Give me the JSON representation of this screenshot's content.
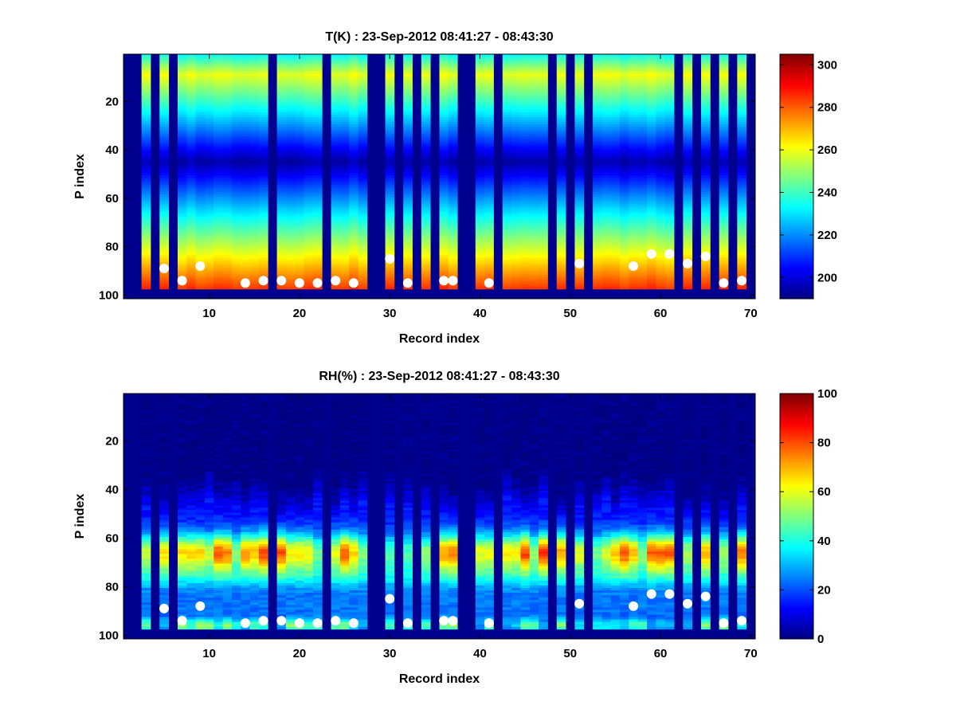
{
  "chart_data": [
    {
      "type": "heatmap",
      "title": "T(K) : 23-Sep-2012 08:41:27 - 08:43:30",
      "xlabel": "Record index",
      "ylabel": "P index",
      "xlim": [
        0.5,
        70.5
      ],
      "ylim": [
        0.5,
        101.5
      ],
      "y_reversed": true,
      "x_ticks": [
        10,
        20,
        30,
        40,
        50,
        60,
        70
      ],
      "y_ticks": [
        20,
        40,
        60,
        80,
        100
      ],
      "colormap": "jet",
      "colorbar": {
        "clim": [
          190,
          305
        ],
        "ticks": [
          200,
          220,
          240,
          260,
          280,
          300
        ]
      },
      "missing_records": [
        1,
        2,
        4,
        6,
        17,
        23,
        28,
        29,
        31,
        33,
        35,
        38,
        39,
        42,
        48,
        50,
        52,
        62,
        64,
        66,
        68,
        70
      ],
      "surface_markers": {
        "x": [
          5,
          7,
          9,
          14,
          16,
          18,
          20,
          22,
          24,
          26,
          30,
          32,
          36,
          37,
          41,
          51,
          57,
          59,
          61,
          63,
          65,
          67,
          69
        ],
        "y": [
          89,
          94,
          88,
          95,
          94,
          94,
          95,
          95,
          94,
          95,
          85,
          95,
          94,
          94,
          95,
          87,
          88,
          83,
          83,
          87,
          84,
          95,
          94
        ]
      }
    },
    {
      "type": "heatmap",
      "title": "RH(%) : 23-Sep-2012 08:41:27 - 08:43:30",
      "xlabel": "Record index",
      "ylabel": "P index",
      "xlim": [
        0.5,
        70.5
      ],
      "ylim": [
        0.5,
        101.5
      ],
      "y_reversed": true,
      "x_ticks": [
        10,
        20,
        30,
        40,
        50,
        60,
        70
      ],
      "y_ticks": [
        20,
        40,
        60,
        80,
        100
      ],
      "colormap": "jet",
      "colorbar": {
        "clim": [
          0,
          100
        ],
        "ticks": [
          0,
          20,
          40,
          60,
          80,
          100
        ]
      },
      "missing_records": [
        1,
        2,
        4,
        6,
        17,
        23,
        28,
        29,
        31,
        33,
        35,
        38,
        39,
        42,
        48,
        50,
        52,
        62,
        64,
        66,
        68,
        70
      ],
      "surface_markers": {
        "x": [
          5,
          7,
          9,
          14,
          16,
          18,
          20,
          22,
          24,
          26,
          30,
          32,
          36,
          37,
          41,
          51,
          57,
          59,
          61,
          63,
          65,
          67,
          69
        ],
        "y": [
          89,
          94,
          88,
          95,
          94,
          94,
          95,
          95,
          94,
          95,
          85,
          95,
          94,
          94,
          95,
          87,
          88,
          83,
          83,
          87,
          84,
          95,
          94
        ]
      }
    }
  ],
  "colors": {
    "missing": "#00008f",
    "marker": "#ffffff",
    "axis": "#000000"
  }
}
